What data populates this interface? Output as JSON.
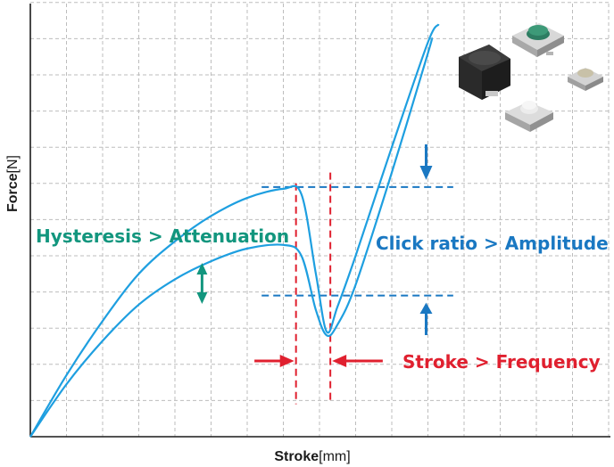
{
  "chart_data": {
    "type": "line",
    "title": "",
    "xlabel": "Stroke",
    "xlabel_unit": "[mm]",
    "ylabel": "Force",
    "ylabel_unit": "[N]",
    "grid": true,
    "x_ticks_labeled": false,
    "y_ticks_labeled": false,
    "series": [
      {
        "role": "outer",
        "x": [
          0,
          1,
          2,
          3,
          4,
          5,
          6,
          7,
          7.5,
          7.9,
          8.2,
          8.5,
          9,
          10,
          11,
          11.3
        ],
        "y": [
          0,
          1.7,
          3.2,
          4.5,
          5.4,
          6.1,
          6.6,
          6.85,
          6.7,
          4.5,
          2.9,
          3.6,
          5.0,
          8.0,
          10.9,
          11.4
        ]
      },
      {
        "role": "inner",
        "x": [
          0,
          1,
          2,
          3,
          4,
          5,
          6,
          7,
          7.5,
          7.9,
          8.2,
          8.5,
          9,
          10,
          11,
          11.1
        ],
        "y": [
          0,
          1.45,
          2.65,
          3.65,
          4.35,
          4.85,
          5.2,
          5.3,
          5.0,
          3.5,
          2.8,
          3.1,
          4.2,
          7.3,
          10.6,
          11.0
        ]
      }
    ],
    "guides": {
      "peak_force_y": 6.9,
      "valley_force_y": 3.9,
      "peak_stroke_x": 7.35,
      "valley_stroke_x": 8.3
    },
    "annotations": [
      {
        "id": "hysteresis",
        "text": "Hysteresis > Attenuation",
        "color": "#12967e"
      },
      {
        "id": "click",
        "text": "Click ratio > Amplitude",
        "color": "#1a78c2"
      },
      {
        "id": "stroke",
        "text": "Stroke > Frequency",
        "color": "#e0202f"
      }
    ],
    "colors": {
      "curve": "#1e9fe0",
      "guide_blue": "#1a78c2",
      "guide_red": "#e0202f",
      "hysteresis": "#12967e",
      "grid": "#bdbdbd",
      "axis": "#1a1a1a"
    },
    "product_images": [
      "tactile-switch-large-black",
      "tactile-switch-green-cap",
      "tactile-switch-beige-cap",
      "tactile-switch-white-cap"
    ]
  }
}
